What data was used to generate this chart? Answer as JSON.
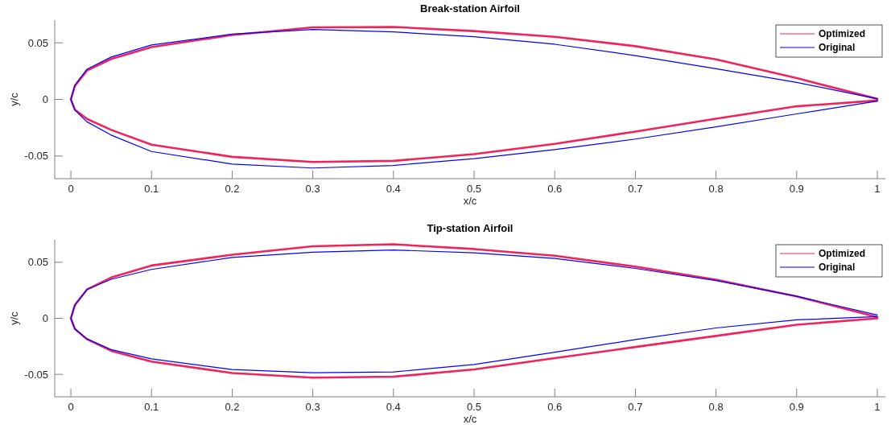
{
  "chart_data": [
    {
      "type": "line",
      "title": "Break-station Airfoil",
      "xlabel": "x/c",
      "ylabel": "y/c",
      "xlim": [
        -0.02,
        1.01
      ],
      "ylim": [
        -0.07,
        0.07
      ],
      "xticks": [
        0,
        0.1,
        0.2,
        0.3,
        0.4,
        0.5,
        0.6,
        0.7,
        0.8,
        0.9,
        1
      ],
      "yticks": [
        -0.05,
        0,
        0.05
      ],
      "grid": false,
      "legend": "top right",
      "line_style": "solid",
      "marker": "none",
      "series": [
        {
          "name": "Optimized",
          "color": "#f0245a",
          "x": [
            1,
            0.9,
            0.8,
            0.7,
            0.6,
            0.5,
            0.4,
            0.35,
            0.3,
            0.2,
            0.1,
            0.05,
            0.02,
            0.005,
            0,
            0.005,
            0.02,
            0.05,
            0.1,
            0.2,
            0.3,
            0.4,
            0.5,
            0.6,
            0.7,
            0.8,
            0.9,
            1
          ],
          "values": [
            0.0005,
            0.0188,
            0.0354,
            0.047,
            0.0553,
            0.0603,
            0.064,
            0.0638,
            0.0636,
            0.0569,
            0.0462,
            0.0357,
            0.0255,
            0.012,
            0,
            -0.009,
            -0.0172,
            -0.0269,
            -0.04,
            -0.0507,
            -0.0553,
            -0.0543,
            -0.0483,
            -0.0393,
            -0.0284,
            -0.0171,
            -0.0061,
            -0.001
          ]
        },
        {
          "name": "Original",
          "color": "#0000ff",
          "x": [
            1,
            0.9,
            0.8,
            0.7,
            0.6,
            0.5,
            0.4,
            0.3,
            0.2,
            0.1,
            0.05,
            0.02,
            0.005,
            0,
            0.005,
            0.02,
            0.05,
            0.1,
            0.2,
            0.3,
            0.4,
            0.5,
            0.6,
            0.7,
            0.8,
            0.9,
            1
          ],
          "values": [
            0.0005,
            0.015,
            0.0271,
            0.0387,
            0.0487,
            0.0553,
            0.0596,
            0.0617,
            0.0576,
            0.0481,
            0.0374,
            0.0267,
            0.0125,
            0,
            -0.0095,
            -0.0198,
            -0.0315,
            -0.046,
            -0.0571,
            -0.0606,
            -0.0583,
            -0.0523,
            -0.0443,
            -0.035,
            -0.0243,
            -0.0128,
            -0.0015
          ]
        }
      ]
    },
    {
      "type": "line",
      "title": "Tip-station Airfoil",
      "xlabel": "x/c",
      "ylabel": "y/c",
      "xlim": [
        -0.02,
        1.01
      ],
      "ylim": [
        -0.07,
        0.07
      ],
      "xticks": [
        0,
        0.1,
        0.2,
        0.3,
        0.4,
        0.5,
        0.6,
        0.7,
        0.8,
        0.9,
        1
      ],
      "yticks": [
        -0.05,
        0,
        0.05
      ],
      "grid": false,
      "legend": "top right",
      "line_style": "solid",
      "marker": "none",
      "series": [
        {
          "name": "Optimized",
          "color": "#f0245a",
          "x": [
            1,
            0.9,
            0.8,
            0.7,
            0.6,
            0.5,
            0.4,
            0.3,
            0.2,
            0.1,
            0.05,
            0.02,
            0.005,
            0,
            0.005,
            0.02,
            0.05,
            0.1,
            0.2,
            0.3,
            0.4,
            0.5,
            0.6,
            0.7,
            0.8,
            0.9,
            1
          ],
          "values": [
            0.001,
            0.0196,
            0.0345,
            0.0461,
            0.0558,
            0.0618,
            0.066,
            0.0643,
            0.0567,
            0.0471,
            0.0364,
            0.0257,
            0.012,
            0,
            -0.0095,
            -0.0186,
            -0.029,
            -0.0386,
            -0.0488,
            -0.0529,
            -0.0521,
            -0.0456,
            -0.0356,
            -0.0256,
            -0.0157,
            -0.0057,
            0
          ]
        },
        {
          "name": "Original",
          "color": "#0000ff",
          "x": [
            1,
            0.9,
            0.8,
            0.7,
            0.6,
            0.5,
            0.4,
            0.3,
            0.2,
            0.1,
            0.05,
            0.02,
            0.005,
            0,
            0.005,
            0.02,
            0.05,
            0.1,
            0.2,
            0.3,
            0.4,
            0.5,
            0.6,
            0.7,
            0.8,
            0.9,
            1
          ],
          "values": [
            0.003,
            0.0196,
            0.0336,
            0.0445,
            0.0534,
            0.0584,
            0.061,
            0.059,
            0.0543,
            0.0436,
            0.0348,
            0.0257,
            0.0115,
            0,
            -0.0095,
            -0.0184,
            -0.0279,
            -0.0362,
            -0.0457,
            -0.0486,
            -0.0479,
            -0.0412,
            -0.0303,
            -0.019,
            -0.0086,
            -0.0014,
            0.0015
          ]
        }
      ]
    }
  ]
}
